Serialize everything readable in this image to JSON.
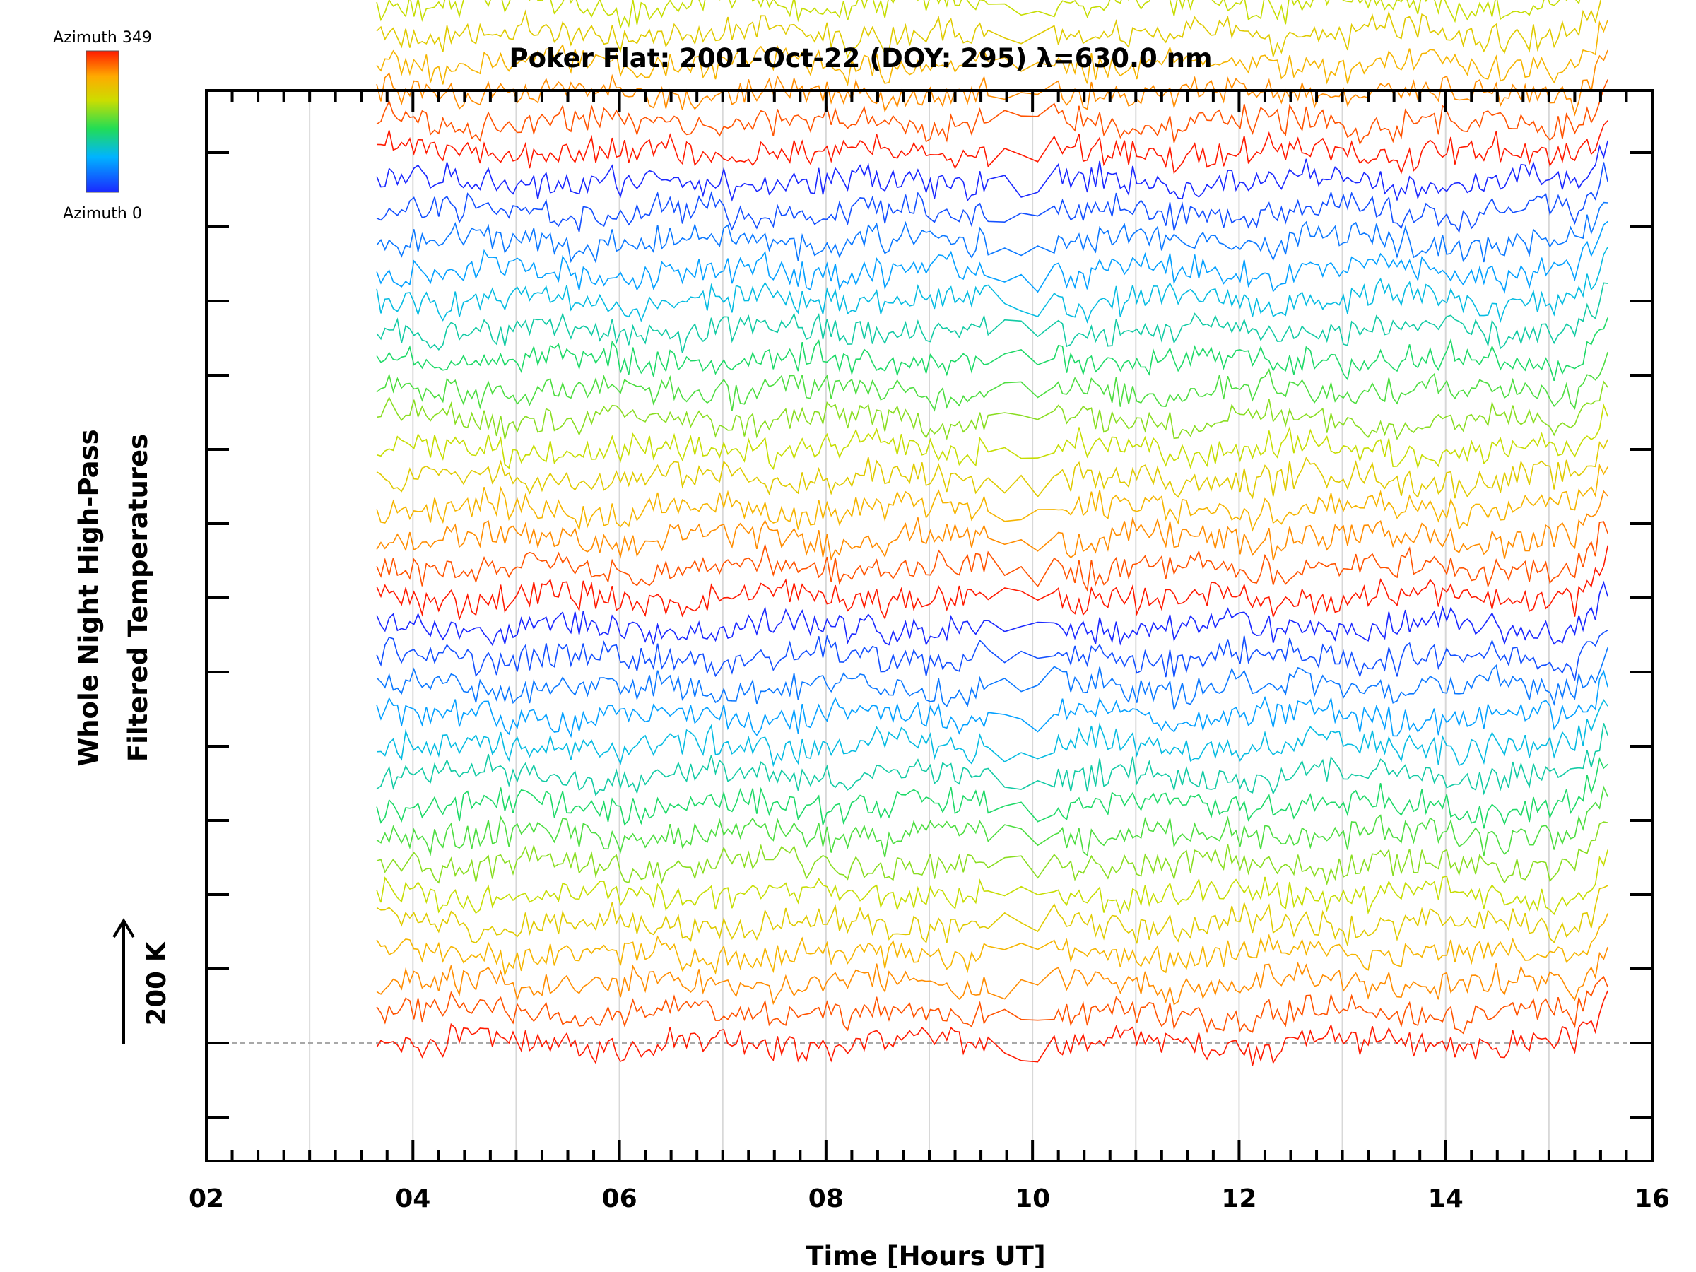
{
  "chart_data": {
    "type": "line",
    "title": "Poker Flat: 2001-Oct-22 (DOY: 295) λ=630.0 nm",
    "xlabel": "Time [Hours UT]",
    "ylabel_line1": "Whole Night High-Pass",
    "ylabel_line2": "Filtered Temperatures",
    "scale_bar_label": "200 K",
    "colorbar": {
      "top_label": "Azimuth  349",
      "bottom_label": "Azimuth  0",
      "colormap": "rainbow (blue→green→yellow→red)"
    },
    "xlim": [
      2,
      16
    ],
    "x_ticks": [
      "02",
      "04",
      "06",
      "08",
      "10",
      "12",
      "14",
      "16"
    ],
    "x_tick_values": [
      2,
      4,
      6,
      8,
      10,
      12,
      14,
      16
    ],
    "x_minor_step": 0.25,
    "x_grid_every_hours": 1,
    "y_ticks_count": 14,
    "y_tick_spacing_K": 100,
    "baseline_dashed": true,
    "data_start_hour": 3.65,
    "data_end_hour": 15.6,
    "data_gap_hours": [
      9.6,
      10.25
    ],
    "series_count": 60,
    "series_offset_K": 40,
    "series_amplitude_K": 22,
    "azimuth_range": [
      0,
      349
    ],
    "grid": true
  },
  "colors": {
    "axis": "#000000",
    "grid": "#d8d8d8",
    "baseline": "#a8a8a8",
    "background": "#ffffff"
  }
}
